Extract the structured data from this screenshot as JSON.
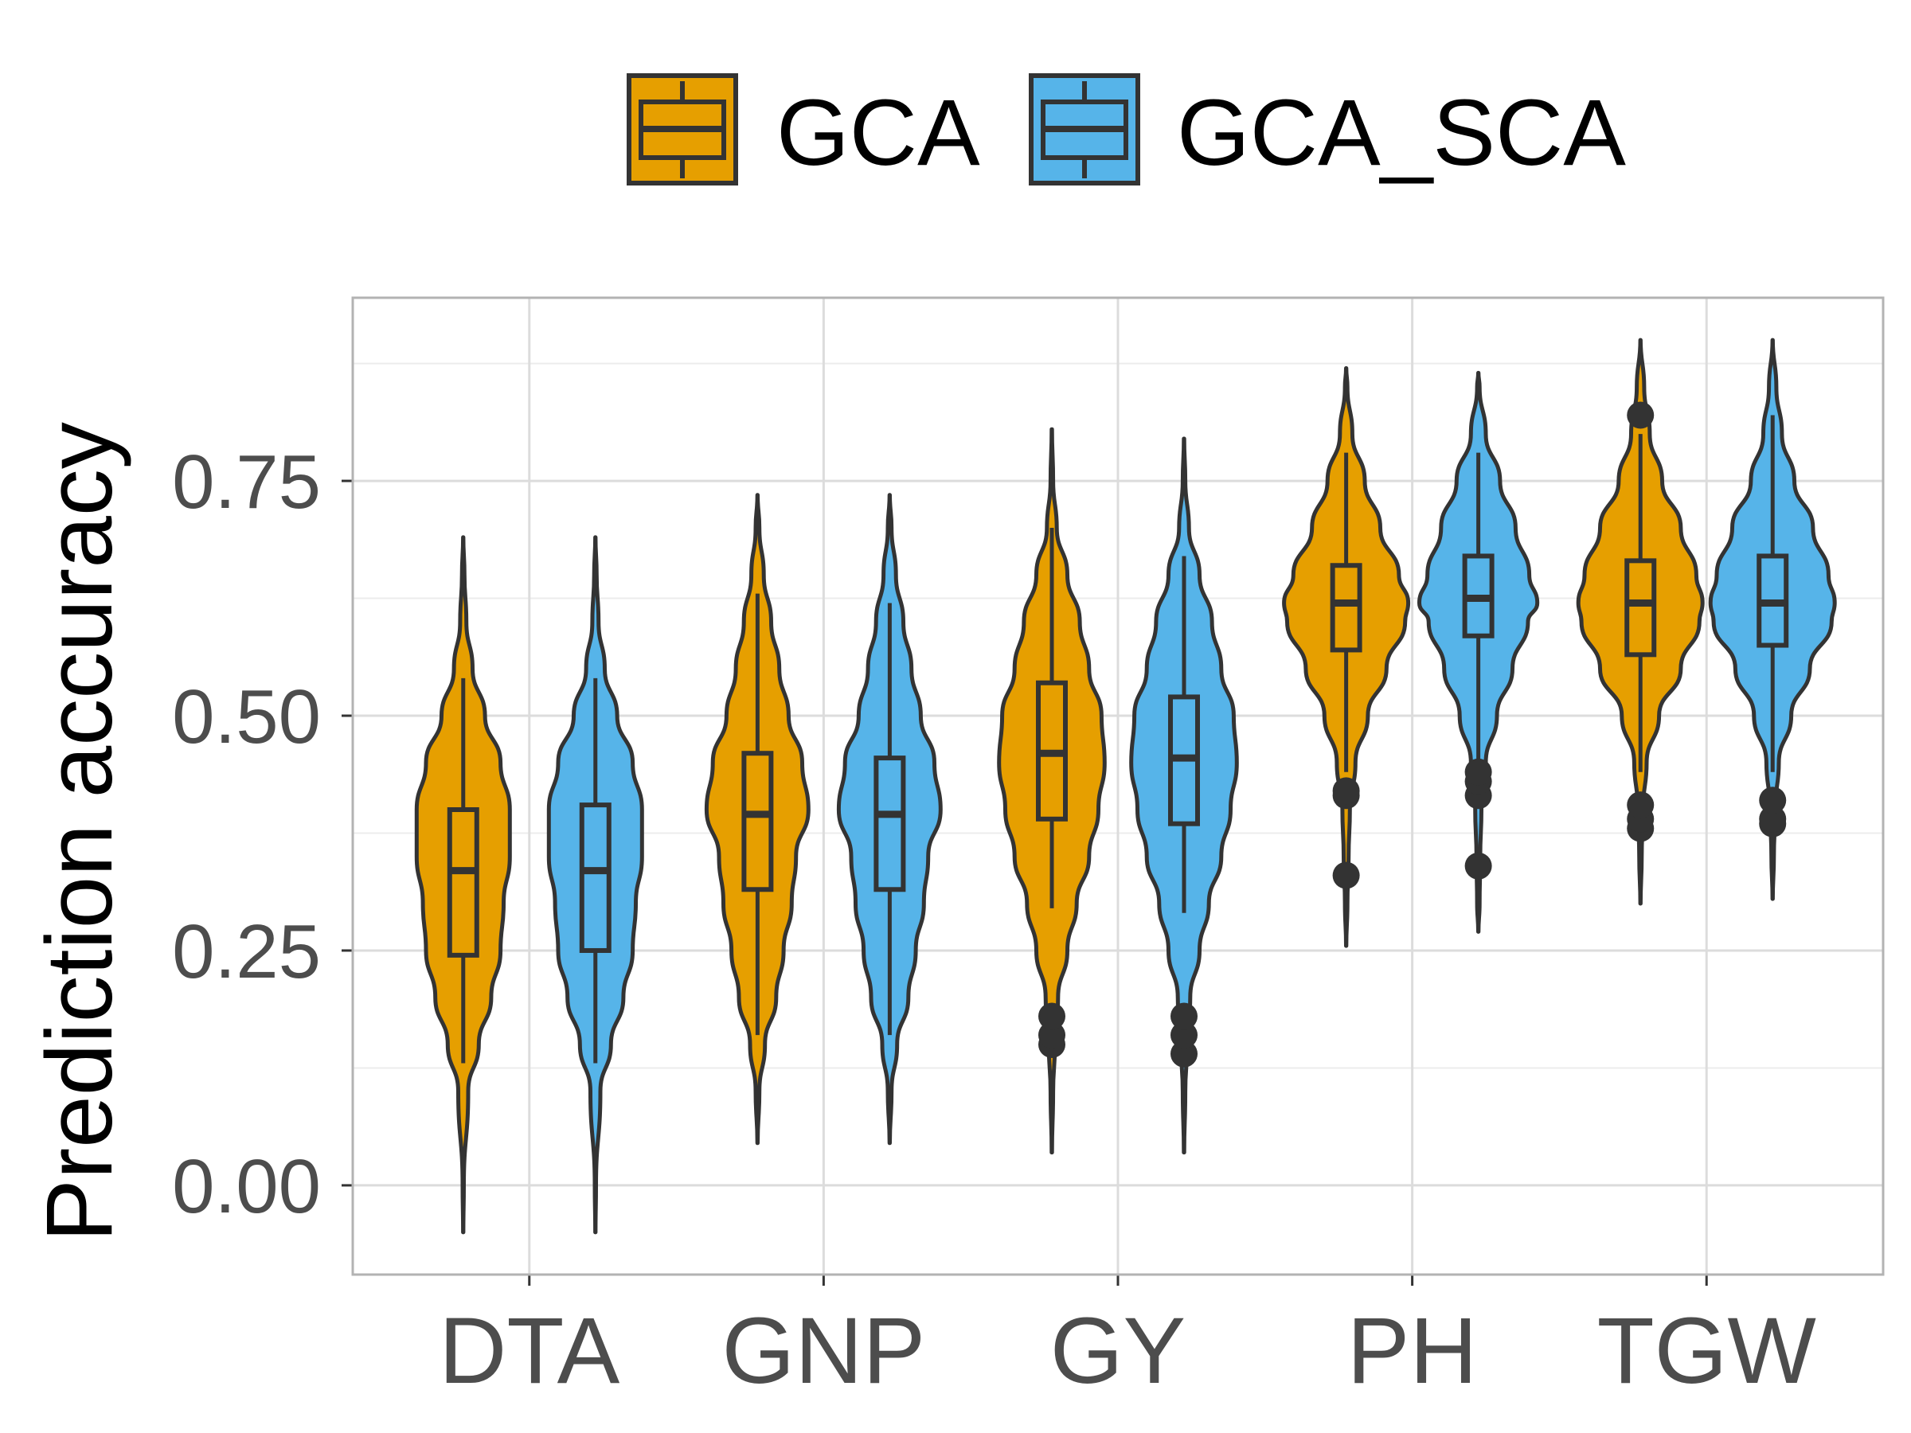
{
  "chart_data": {
    "type": "violin",
    "ylabel": "Prediction accuracy",
    "xlabel": "",
    "categories": [
      "DTA",
      "GNP",
      "GY",
      "PH",
      "TGW"
    ],
    "ylim": [
      -0.095,
      0.945
    ],
    "yticks": [
      0.0,
      0.25,
      0.5,
      0.75
    ],
    "ytick_labels": [
      "0.00",
      "0.25",
      "0.50",
      "0.75"
    ],
    "grid": true,
    "legend_position": "top",
    "colors": {
      "GCA": "#E69F00",
      "GCA_SCA": "#56B4E9",
      "outline": "#333333",
      "grid": "#dcdcdc",
      "tick_text": "#4d4d4d"
    },
    "series": [
      {
        "name": "GCA",
        "violins": [
          {
            "category": "DTA",
            "min": -0.05,
            "max": 0.69,
            "q1": 0.245,
            "median": 0.335,
            "q3": 0.4,
            "wlo": 0.13,
            "whi": 0.54,
            "density": [
              [
                -0.05,
                0.002
              ],
              [
                0.0,
                0.01
              ],
              [
                0.1,
                0.08
              ],
              [
                0.15,
                0.25
              ],
              [
                0.2,
                0.45
              ],
              [
                0.25,
                0.6
              ],
              [
                0.3,
                0.65
              ],
              [
                0.35,
                0.75
              ],
              [
                0.4,
                0.75
              ],
              [
                0.45,
                0.6
              ],
              [
                0.5,
                0.35
              ],
              [
                0.55,
                0.15
              ],
              [
                0.6,
                0.05
              ],
              [
                0.65,
                0.02
              ],
              [
                0.69,
                0.002
              ]
            ],
            "outliers": []
          },
          {
            "category": "GNP",
            "min": 0.045,
            "max": 0.735,
            "q1": 0.315,
            "median": 0.395,
            "q3": 0.46,
            "wlo": 0.16,
            "whi": 0.63,
            "density": [
              [
                0.045,
                0.002
              ],
              [
                0.1,
                0.03
              ],
              [
                0.15,
                0.12
              ],
              [
                0.2,
                0.3
              ],
              [
                0.25,
                0.42
              ],
              [
                0.3,
                0.55
              ],
              [
                0.35,
                0.62
              ],
              [
                0.4,
                0.82
              ],
              [
                0.45,
                0.72
              ],
              [
                0.5,
                0.5
              ],
              [
                0.55,
                0.35
              ],
              [
                0.6,
                0.22
              ],
              [
                0.65,
                0.1
              ],
              [
                0.7,
                0.03
              ],
              [
                0.735,
                0.002
              ]
            ],
            "outliers": []
          },
          {
            "category": "GY",
            "min": 0.035,
            "max": 0.805,
            "q1": 0.39,
            "median": 0.46,
            "q3": 0.535,
            "wlo": 0.295,
            "whi": 0.7,
            "density": [
              [
                0.035,
                0.002
              ],
              [
                0.1,
                0.02
              ],
              [
                0.15,
                0.05
              ],
              [
                0.2,
                0.1
              ],
              [
                0.25,
                0.25
              ],
              [
                0.3,
                0.4
              ],
              [
                0.35,
                0.6
              ],
              [
                0.4,
                0.75
              ],
              [
                0.45,
                0.85
              ],
              [
                0.5,
                0.8
              ],
              [
                0.55,
                0.6
              ],
              [
                0.6,
                0.45
              ],
              [
                0.65,
                0.25
              ],
              [
                0.7,
                0.08
              ],
              [
                0.75,
                0.02
              ],
              [
                0.805,
                0.002
              ]
            ],
            "outliers": [
              0.15,
              0.16,
              0.18
            ]
          },
          {
            "category": "PH",
            "min": 0.255,
            "max": 0.87,
            "q1": 0.57,
            "median": 0.62,
            "q3": 0.66,
            "wlo": 0.44,
            "whi": 0.78,
            "density": [
              [
                0.255,
                0.002
              ],
              [
                0.3,
                0.02
              ],
              [
                0.35,
                0.04
              ],
              [
                0.4,
                0.06
              ],
              [
                0.45,
                0.15
              ],
              [
                0.5,
                0.35
              ],
              [
                0.55,
                0.65
              ],
              [
                0.6,
                0.95
              ],
              [
                0.62,
                1.0
              ],
              [
                0.65,
                0.85
              ],
              [
                0.7,
                0.55
              ],
              [
                0.75,
                0.3
              ],
              [
                0.8,
                0.1
              ],
              [
                0.85,
                0.02
              ],
              [
                0.87,
                0.002
              ]
            ],
            "outliers": [
              0.33,
              0.415,
              0.42
            ]
          },
          {
            "category": "TGW",
            "min": 0.3,
            "max": 0.9,
            "q1": 0.565,
            "median": 0.62,
            "q3": 0.665,
            "wlo": 0.44,
            "whi": 0.8,
            "density": [
              [
                0.3,
                0.002
              ],
              [
                0.35,
                0.02
              ],
              [
                0.4,
                0.04
              ],
              [
                0.45,
                0.1
              ],
              [
                0.5,
                0.3
              ],
              [
                0.55,
                0.65
              ],
              [
                0.6,
                0.95
              ],
              [
                0.62,
                1.0
              ],
              [
                0.65,
                0.9
              ],
              [
                0.7,
                0.65
              ],
              [
                0.75,
                0.35
              ],
              [
                0.8,
                0.15
              ],
              [
                0.85,
                0.06
              ],
              [
                0.9,
                0.002
              ]
            ],
            "outliers": [
              0.38,
              0.39,
              0.405,
              0.82
            ]
          }
        ]
      },
      {
        "name": "GCA_SCA",
        "violins": [
          {
            "category": "DTA",
            "min": -0.05,
            "max": 0.69,
            "q1": 0.25,
            "median": 0.335,
            "q3": 0.405,
            "wlo": 0.13,
            "whi": 0.54,
            "density": [
              [
                -0.05,
                0.002
              ],
              [
                0.0,
                0.01
              ],
              [
                0.1,
                0.08
              ],
              [
                0.15,
                0.25
              ],
              [
                0.2,
                0.45
              ],
              [
                0.25,
                0.6
              ],
              [
                0.3,
                0.65
              ],
              [
                0.35,
                0.75
              ],
              [
                0.4,
                0.75
              ],
              [
                0.45,
                0.6
              ],
              [
                0.5,
                0.35
              ],
              [
                0.55,
                0.15
              ],
              [
                0.6,
                0.05
              ],
              [
                0.65,
                0.02
              ],
              [
                0.69,
                0.002
              ]
            ],
            "outliers": []
          },
          {
            "category": "GNP",
            "min": 0.045,
            "max": 0.735,
            "q1": 0.315,
            "median": 0.395,
            "q3": 0.455,
            "wlo": 0.16,
            "whi": 0.62,
            "density": [
              [
                0.045,
                0.002
              ],
              [
                0.1,
                0.03
              ],
              [
                0.15,
                0.12
              ],
              [
                0.2,
                0.3
              ],
              [
                0.25,
                0.42
              ],
              [
                0.3,
                0.55
              ],
              [
                0.35,
                0.62
              ],
              [
                0.4,
                0.82
              ],
              [
                0.45,
                0.72
              ],
              [
                0.5,
                0.5
              ],
              [
                0.55,
                0.35
              ],
              [
                0.6,
                0.22
              ],
              [
                0.65,
                0.1
              ],
              [
                0.7,
                0.03
              ],
              [
                0.735,
                0.002
              ]
            ],
            "outliers": []
          },
          {
            "category": "GY",
            "min": 0.035,
            "max": 0.795,
            "q1": 0.385,
            "median": 0.455,
            "q3": 0.52,
            "wlo": 0.29,
            "whi": 0.67,
            "density": [
              [
                0.035,
                0.002
              ],
              [
                0.1,
                0.02
              ],
              [
                0.15,
                0.05
              ],
              [
                0.2,
                0.1
              ],
              [
                0.25,
                0.25
              ],
              [
                0.3,
                0.4
              ],
              [
                0.35,
                0.6
              ],
              [
                0.4,
                0.75
              ],
              [
                0.45,
                0.85
              ],
              [
                0.5,
                0.8
              ],
              [
                0.55,
                0.6
              ],
              [
                0.6,
                0.45
              ],
              [
                0.65,
                0.25
              ],
              [
                0.7,
                0.08
              ],
              [
                0.75,
                0.02
              ],
              [
                0.795,
                0.002
              ]
            ],
            "outliers": [
              0.14,
              0.16,
              0.18
            ]
          },
          {
            "category": "PH",
            "min": 0.27,
            "max": 0.865,
            "q1": 0.585,
            "median": 0.625,
            "q3": 0.67,
            "wlo": 0.44,
            "whi": 0.78,
            "density": [
              [
                0.27,
                0.002
              ],
              [
                0.3,
                0.02
              ],
              [
                0.35,
                0.03
              ],
              [
                0.4,
                0.05
              ],
              [
                0.45,
                0.12
              ],
              [
                0.5,
                0.3
              ],
              [
                0.55,
                0.55
              ],
              [
                0.6,
                0.8
              ],
              [
                0.62,
                0.95
              ],
              [
                0.65,
                0.82
              ],
              [
                0.7,
                0.6
              ],
              [
                0.75,
                0.35
              ],
              [
                0.8,
                0.12
              ],
              [
                0.85,
                0.02
              ],
              [
                0.865,
                0.002
              ]
            ],
            "outliers": [
              0.34,
              0.415,
              0.43,
              0.44
            ]
          },
          {
            "category": "TGW",
            "min": 0.305,
            "max": 0.9,
            "q1": 0.575,
            "median": 0.62,
            "q3": 0.67,
            "wlo": 0.44,
            "whi": 0.82,
            "density": [
              [
                0.305,
                0.002
              ],
              [
                0.35,
                0.02
              ],
              [
                0.4,
                0.04
              ],
              [
                0.45,
                0.1
              ],
              [
                0.5,
                0.3
              ],
              [
                0.55,
                0.6
              ],
              [
                0.6,
                0.95
              ],
              [
                0.62,
                1.0
              ],
              [
                0.65,
                0.9
              ],
              [
                0.7,
                0.65
              ],
              [
                0.75,
                0.35
              ],
              [
                0.8,
                0.15
              ],
              [
                0.85,
                0.06
              ],
              [
                0.9,
                0.002
              ]
            ],
            "outliers": [
              0.385,
              0.39,
              0.41
            ]
          }
        ]
      }
    ]
  }
}
